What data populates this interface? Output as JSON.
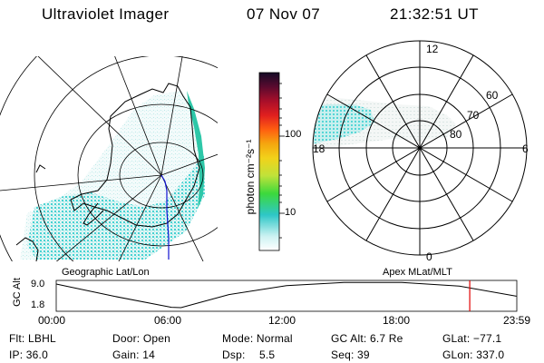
{
  "header": {
    "instrument": "Ultraviolet Imager",
    "date": "07 Nov 07",
    "time": "21:32:51 UT"
  },
  "geo_panel": {
    "label": "Geographic Lat/Lon"
  },
  "colorbar": {
    "unit_label": "photon cm⁻²s⁻¹",
    "ticks": [
      {
        "label": "100",
        "value": 100
      },
      {
        "label": "10",
        "value": 10
      }
    ],
    "colors": [
      "#ccf2f2",
      "#2ec7c7",
      "#3cd93c",
      "#d6e02b",
      "#f5b30f",
      "#ff7c00",
      "#e51f1f",
      "#a80f2a",
      "#5a0a2e",
      "#1a0a30"
    ]
  },
  "polar_panel": {
    "label": "Apex MLat/MLT",
    "lat_labels": [
      "80",
      "70",
      "60"
    ],
    "mlt_labels": {
      "top": "12",
      "bottom": "0",
      "left": "18",
      "right": "6"
    }
  },
  "timeline": {
    "y_axis_label": "GC Alt",
    "y_ticks": [
      "9.0",
      "1.8"
    ],
    "x_ticks": [
      "00:00",
      "06:00",
      "12:00",
      "18:00",
      "23:59"
    ],
    "orbit_altitude_re": [
      {
        "t": 0.0,
        "alt": 9.0
      },
      {
        "t": 3.0,
        "alt": 5.3
      },
      {
        "t": 6.0,
        "alt": 1.9
      },
      {
        "t": 6.5,
        "alt": 1.8
      },
      {
        "t": 9.0,
        "alt": 5.8
      },
      {
        "t": 12.0,
        "alt": 8.5
      },
      {
        "t": 15.0,
        "alt": 9.5
      },
      {
        "t": 18.0,
        "alt": 9.5
      },
      {
        "t": 21.0,
        "alt": 8.4
      },
      {
        "t": 23.98,
        "alt": 5.3
      }
    ],
    "current_time_hours": 21.55
  },
  "info": {
    "filter_label": "Flt: LBHL",
    "door_label": "Door: Open",
    "mode_label": "Mode: Normal",
    "gc_alt_label": "GC Alt: 6.7 Re",
    "glat_label": "GLat: −77.1",
    "ip_label": "IP: 36.0",
    "gain_label": "Gain: 14",
    "dsp_key": "Dsp:",
    "dsp_value": "5.5",
    "seq_label": "Seq: 39",
    "glon_label": "GLon: 337.0"
  },
  "colors": {
    "aurora_cyan": "#37d3d3",
    "aurora_light": "#c8f0ee",
    "track_blue": "#1010d0",
    "marker_red": "#e00000"
  }
}
